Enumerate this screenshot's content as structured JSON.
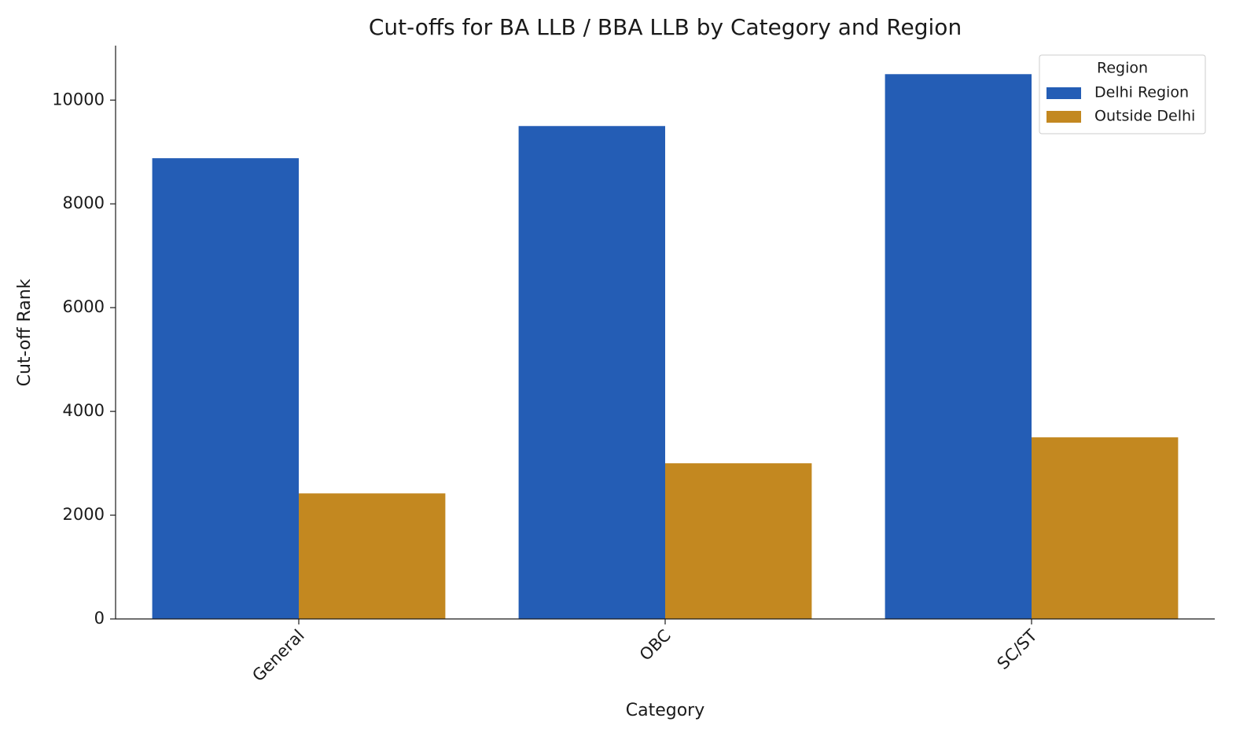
{
  "chart_data": {
    "type": "bar",
    "title": "Cut-offs for BA LLB / BBA LLB by Category and Region",
    "x_label": "Category",
    "y_label": "Cut-off Rank",
    "categories": [
      "General",
      "OBC",
      "SC/ST"
    ],
    "series": [
      {
        "name": "Delhi Region",
        "color": "#245db5",
        "values": [
          8880,
          9500,
          10500
        ]
      },
      {
        "name": "Outside Delhi",
        "color": "#c38820",
        "values": [
          2420,
          3000,
          3500
        ]
      }
    ],
    "ylim": [
      0,
      11050
    ],
    "yticks": [
      0,
      2000,
      4000,
      6000,
      8000,
      10000
    ],
    "grid": false,
    "legend_title": "Region",
    "legend_position": "upper right"
  }
}
